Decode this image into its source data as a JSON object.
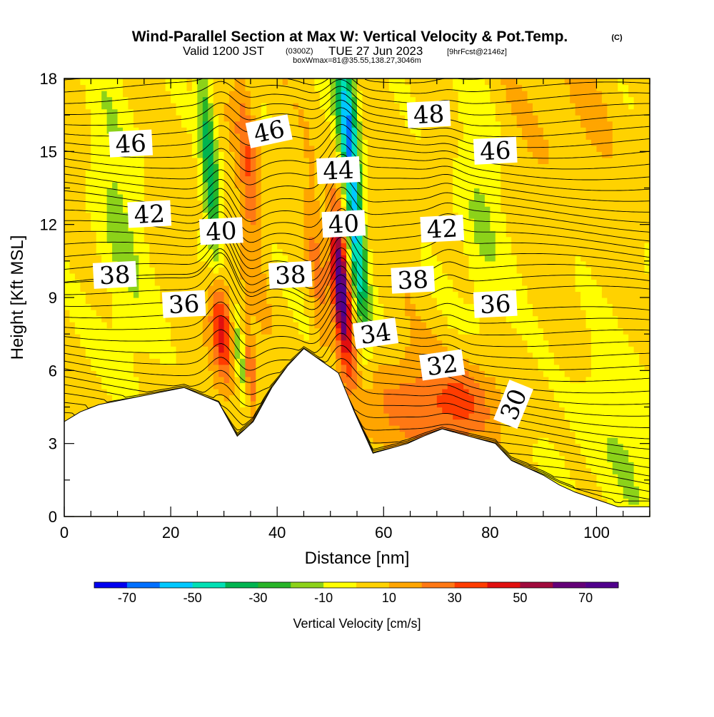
{
  "title": {
    "main": "Wind-Parallel Section at Max W: Vertical Velocity & Pot.Temp.",
    "copyright": "(C)",
    "valid_prefix": "Valid 1200 JST",
    "utc": "(0300Z)",
    "valid_date": "TUE 27 Jun 2023",
    "forecast": "[9hrFcst@2146z]",
    "box": "boxWmax=81@35.55,138.27,3046m"
  },
  "chart_data": {
    "type": "heatmap",
    "xlabel": "Distance [nm]",
    "ylabel": "Height [Kft MSL]",
    "xlim": [
      0,
      110
    ],
    "ylim": [
      0,
      18
    ],
    "x_ticks": [
      0,
      20,
      40,
      60,
      80,
      100
    ],
    "y_ticks": [
      0,
      3,
      6,
      9,
      12,
      15,
      18
    ],
    "colorbar": {
      "label": "Vertical Velocity [cm/s]",
      "tick_labels": [
        "-70",
        "-50",
        "-30",
        "-10",
        "10",
        "30",
        "50",
        "70"
      ],
      "tick_values": [
        -70,
        -50,
        -30,
        -10,
        10,
        30,
        50,
        70
      ],
      "bounds": [
        -80,
        80
      ],
      "colors": [
        "#0000f0",
        "#0070ff",
        "#00c8ff",
        "#00e0b4",
        "#00b450",
        "#28b428",
        "#8cd219",
        "#ffff00",
        "#ffd200",
        "#ffa500",
        "#ff7814",
        "#ff3c00",
        "#e10f0f",
        "#a00a3c",
        "#640078",
        "#50008c"
      ]
    },
    "theta_contour_labels": [
      {
        "value": "46",
        "x": 12.5,
        "y": 15.3
      },
      {
        "value": "46",
        "x": 38.5,
        "y": 15.8
      },
      {
        "value": "48",
        "x": 68.5,
        "y": 16.5
      },
      {
        "value": "46",
        "x": 81.0,
        "y": 15.0
      },
      {
        "value": "44",
        "x": 51.5,
        "y": 14.2
      },
      {
        "value": "42",
        "x": 16.0,
        "y": 12.4
      },
      {
        "value": "40",
        "x": 29.5,
        "y": 11.7
      },
      {
        "value": "40",
        "x": 52.5,
        "y": 12.0
      },
      {
        "value": "42",
        "x": 71.0,
        "y": 11.8
      },
      {
        "value": "38",
        "x": 9.5,
        "y": 9.9
      },
      {
        "value": "38",
        "x": 42.5,
        "y": 9.9
      },
      {
        "value": "38",
        "x": 65.5,
        "y": 9.7
      },
      {
        "value": "36",
        "x": 22.5,
        "y": 8.7
      },
      {
        "value": "36",
        "x": 81.0,
        "y": 8.7
      },
      {
        "value": "34",
        "x": 58.5,
        "y": 7.5
      },
      {
        "value": "32",
        "x": 71.0,
        "y": 6.2
      },
      {
        "value": "30",
        "x": 84.5,
        "y": 4.6
      }
    ],
    "terrain": [
      {
        "x": 0,
        "z": 3.9
      },
      {
        "x": 3,
        "z": 4.3
      },
      {
        "x": 6.5,
        "z": 4.6
      },
      {
        "x": 22.5,
        "z": 5.3
      },
      {
        "x": 29,
        "z": 4.7
      },
      {
        "x": 32.5,
        "z": 3.3
      },
      {
        "x": 35.5,
        "z": 3.9
      },
      {
        "x": 39,
        "z": 5.3
      },
      {
        "x": 42,
        "z": 6.2
      },
      {
        "x": 45,
        "z": 6.9
      },
      {
        "x": 51.5,
        "z": 5.9
      },
      {
        "x": 54.5,
        "z": 4.3
      },
      {
        "x": 58,
        "z": 2.6
      },
      {
        "x": 64.5,
        "z": 3.0
      },
      {
        "x": 67.5,
        "z": 3.3
      },
      {
        "x": 71,
        "z": 3.6
      },
      {
        "x": 81,
        "z": 3.0
      },
      {
        "x": 84,
        "z": 2.3
      },
      {
        "x": 87,
        "z": 2.0
      },
      {
        "x": 90,
        "z": 1.7
      },
      {
        "x": 93,
        "z": 1.3
      },
      {
        "x": 96,
        "z": 1.0
      },
      {
        "x": 100,
        "z": 0.7
      },
      {
        "x": 104,
        "z": 0.4
      },
      {
        "x": 110,
        "z": 0.4
      }
    ],
    "w_features": [
      {
        "x": 29.5,
        "z": 8.0,
        "sx": 1.3,
        "sz": 1.6,
        "w": 58
      },
      {
        "x": 52.0,
        "z": 9.5,
        "sx": 1.1,
        "sz": 2.3,
        "w": 72
      },
      {
        "x": 27.5,
        "z": 14.0,
        "sx": 1.1,
        "sz": 4.0,
        "w": -40
      },
      {
        "x": 54.5,
        "z": 12.5,
        "sx": 1.1,
        "sz": 3.5,
        "w": -60
      },
      {
        "x": 53.0,
        "z": 17.0,
        "sx": 1.6,
        "sz": 1.6,
        "w": -35
      },
      {
        "x": 34.5,
        "z": 14.5,
        "sx": 1.4,
        "sz": 3.0,
        "w": 25
      },
      {
        "x": 47.5,
        "z": 10.0,
        "sx": 1.2,
        "sz": 3.0,
        "w": 15
      },
      {
        "x": 10.0,
        "z": 12.0,
        "sx": 3.5,
        "sz": 5.0,
        "w": -15
      },
      {
        "x": 78.0,
        "z": 12.0,
        "sx": 3.0,
        "sz": 4.0,
        "w": -15
      },
      {
        "x": 66.0,
        "z": 4.5,
        "sx": 8.0,
        "sz": 1.5,
        "w": 22
      },
      {
        "x": 76.0,
        "z": 4.8,
        "sx": 4.0,
        "sz": 1.2,
        "w": 20
      },
      {
        "x": 105.0,
        "z": 3.0,
        "sx": 8.0,
        "sz": 3.0,
        "w": -12
      },
      {
        "x": 95.0,
        "z": 16.0,
        "sx": 7.0,
        "sz": 3.0,
        "w": 6
      },
      {
        "x": 35.0,
        "z": 6.0,
        "sx": 0.7,
        "sz": 1.2,
        "w": 30
      },
      {
        "x": 33.0,
        "z": 6.5,
        "sx": 0.6,
        "sz": 1.2,
        "w": -22
      }
    ]
  }
}
